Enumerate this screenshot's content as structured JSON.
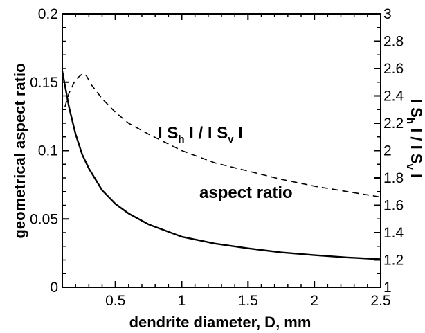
{
  "chart_data": {
    "type": "line",
    "title": "",
    "xlabel": "dendrite diameter, D,  mm",
    "ylabel_left": "geometrical aspect ratio",
    "ylabel_right": "I S_h I / I S_v I",
    "xlim": [
      0.1,
      2.5
    ],
    "ylim_left": [
      0,
      0.2
    ],
    "ylim_right": [
      1,
      3
    ],
    "x_ticks": [
      "0.5",
      "1",
      "1.5",
      "2",
      "2.5"
    ],
    "y_ticks_left": [
      "0",
      "0.05",
      "0.1",
      "0.15",
      "0.2"
    ],
    "y_ticks_right": [
      "1",
      "1.2",
      "1.4",
      "1.6",
      "1.8",
      "2",
      "2.2",
      "2.4",
      "2.6",
      "2.8",
      "3"
    ],
    "grid": false,
    "series": [
      {
        "name": "aspect ratio",
        "axis": "left",
        "style": "solid",
        "x": [
          0.1,
          0.15,
          0.2,
          0.25,
          0.3,
          0.4,
          0.5,
          0.6,
          0.75,
          1.0,
          1.25,
          1.5,
          1.75,
          2.0,
          2.25,
          2.5
        ],
        "y": [
          0.158,
          0.132,
          0.112,
          0.097,
          0.087,
          0.071,
          0.061,
          0.054,
          0.046,
          0.037,
          0.032,
          0.0285,
          0.0255,
          0.0235,
          0.0218,
          0.0205
        ]
      },
      {
        "name": "I S_h I / I S_v I",
        "axis": "right",
        "style": "dashed",
        "x": [
          0.12,
          0.15,
          0.2,
          0.25,
          0.28,
          0.32,
          0.4,
          0.5,
          0.6,
          0.75,
          1.0,
          1.25,
          1.5,
          1.75,
          2.0,
          2.25,
          2.5
        ],
        "y": [
          2.32,
          2.42,
          2.52,
          2.56,
          2.55,
          2.48,
          2.38,
          2.28,
          2.2,
          2.12,
          2.0,
          1.91,
          1.85,
          1.79,
          1.74,
          1.7,
          1.66
        ]
      }
    ],
    "annotations": {
      "ratio_label": {
        "base1": "I S",
        "sub1": "h",
        "mid": " I  /  I S",
        "sub2": "v",
        "end": " I"
      },
      "aspect_label": "aspect ratio",
      "right_axis_title": {
        "base1": "I S",
        "sub1": "h",
        "mid": " I  /  I S",
        "sub2": "v",
        "end": " I"
      }
    }
  }
}
